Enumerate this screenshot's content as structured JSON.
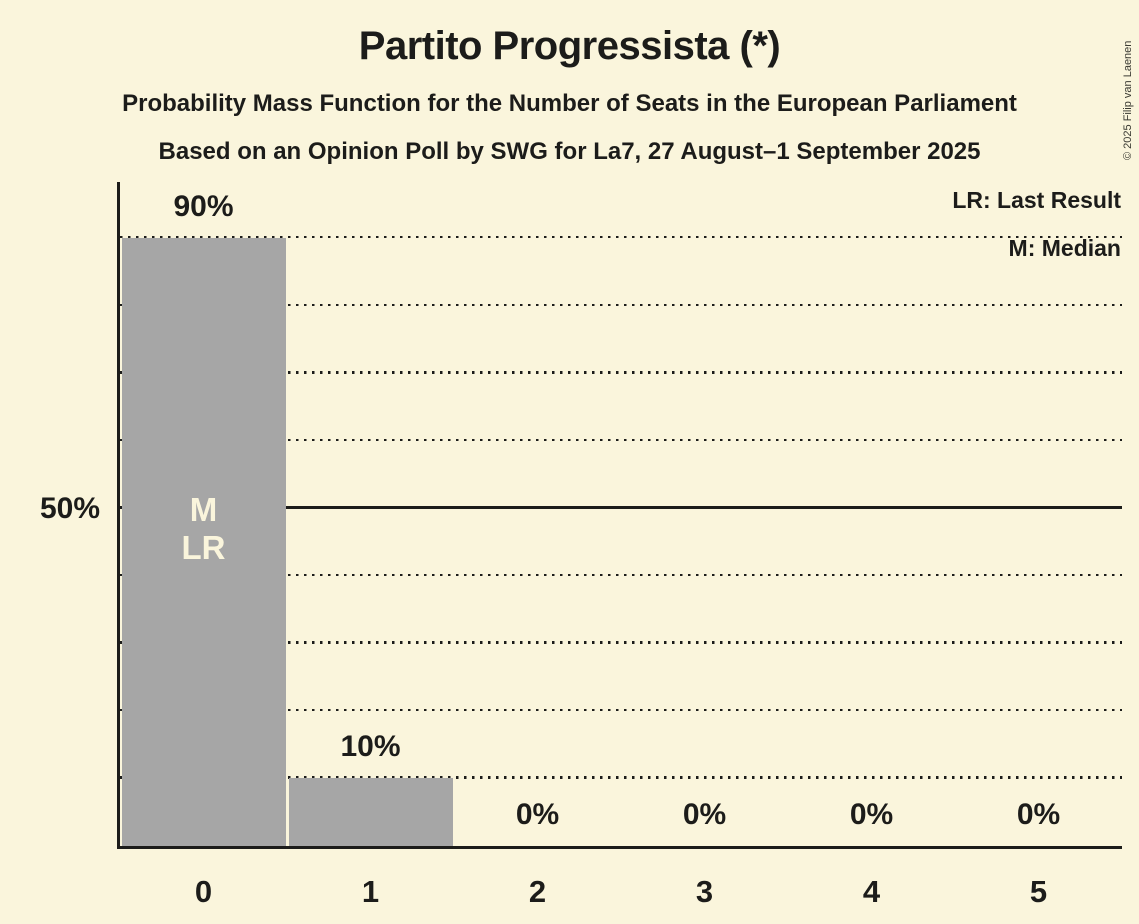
{
  "header": {
    "title": "Partito Progressista (*)",
    "subtitle1": "Probability Mass Function for the Number of Seats in the European Parliament",
    "subtitle2": "Based on an Opinion Poll by SWG for La7, 27 August–1 September 2025"
  },
  "legend": {
    "lr": "LR: Last Result",
    "m": "M: Median"
  },
  "y_axis": {
    "mid_label": "50%"
  },
  "copyright": "© 2025 Filip van Laenen",
  "colors": {
    "background": "#FAF5DC",
    "bar": "#A6A6A6",
    "text": "#1C1C1A",
    "bar_annotation": "#FAF5DC"
  },
  "chart_data": {
    "type": "bar",
    "title": "Partito Progressista (*)",
    "categories": [
      "0",
      "1",
      "2",
      "3",
      "4",
      "5"
    ],
    "values": [
      90,
      10,
      0,
      0,
      0,
      0
    ],
    "value_labels": [
      "90%",
      "10%",
      "0%",
      "0%",
      "0%",
      "0%"
    ],
    "xlabel": "",
    "ylabel": "",
    "ylim": [
      0,
      100
    ],
    "y_tick_labeled": [
      50
    ],
    "gridlines_percent": [
      10,
      20,
      30,
      40,
      60,
      70,
      80,
      90
    ],
    "solid_line_percent": 50,
    "grid": "dotted horizontal",
    "legend_position": "top-right",
    "annotation": {
      "bar_index": 0,
      "lines": [
        "M",
        "LR"
      ]
    }
  }
}
